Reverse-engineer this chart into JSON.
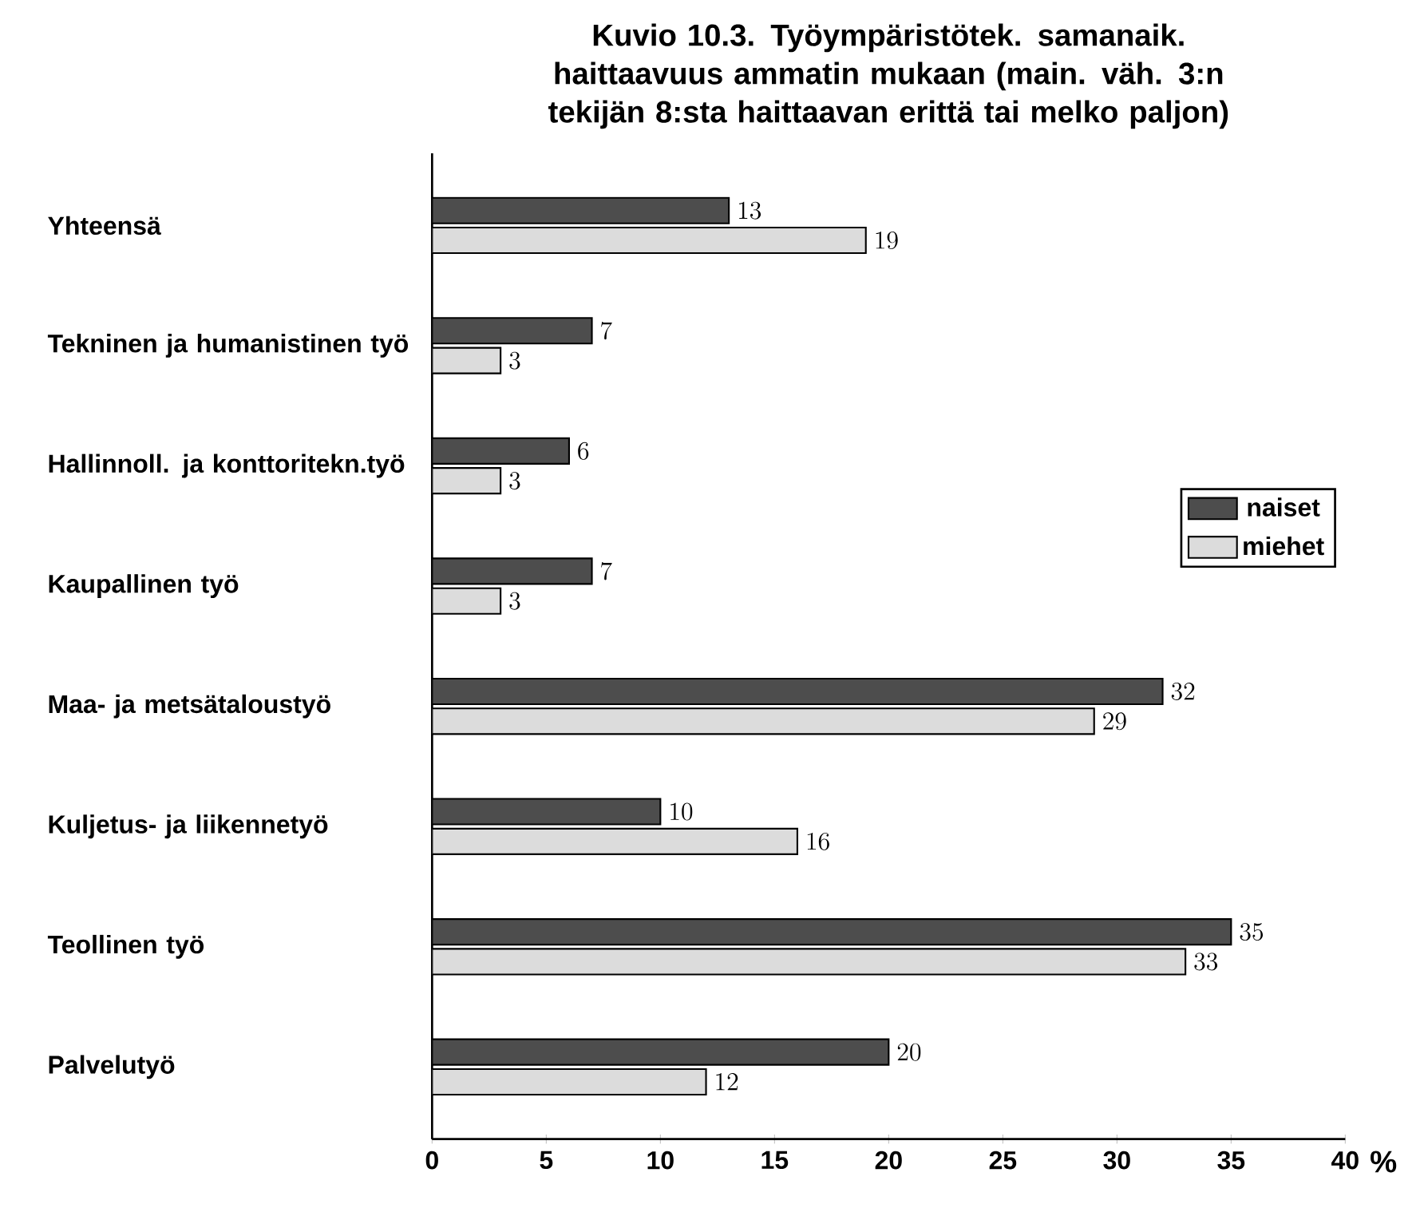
{
  "chart_data": {
    "type": "bar",
    "orientation": "horizontal",
    "title": "Kuvio 10.3. Työympäristötek. samanaik. haittaavuus ammatin mukaan (main. väh. 3:n tekijän 8:sta haittaavan erittä tai melko paljon)",
    "xlabel": "%",
    "categories": [
      "Yhteensä",
      "Tekninen ja humanistinen työ",
      "Hallinnoll. ja konttoritekn.työ",
      "Kaupallinen työ",
      "Maa- ja metsätaloustyö",
      "Kuljetus- ja liikennetyö",
      "Teollinen työ",
      "Palvelutyö"
    ],
    "series": [
      {
        "name": "naiset",
        "color": "#4d4d4d",
        "values": [
          13,
          7,
          6,
          7,
          32,
          10,
          35,
          20
        ]
      },
      {
        "name": "miehet",
        "color": "#dcdcdc",
        "values": [
          19,
          3,
          3,
          3,
          29,
          16,
          33,
          12
        ]
      }
    ],
    "xlim": [
      0,
      40
    ],
    "xticks": [
      0,
      5,
      10,
      15,
      20,
      25,
      30,
      35,
      40
    ],
    "data_labels": true,
    "legend": "right"
  }
}
